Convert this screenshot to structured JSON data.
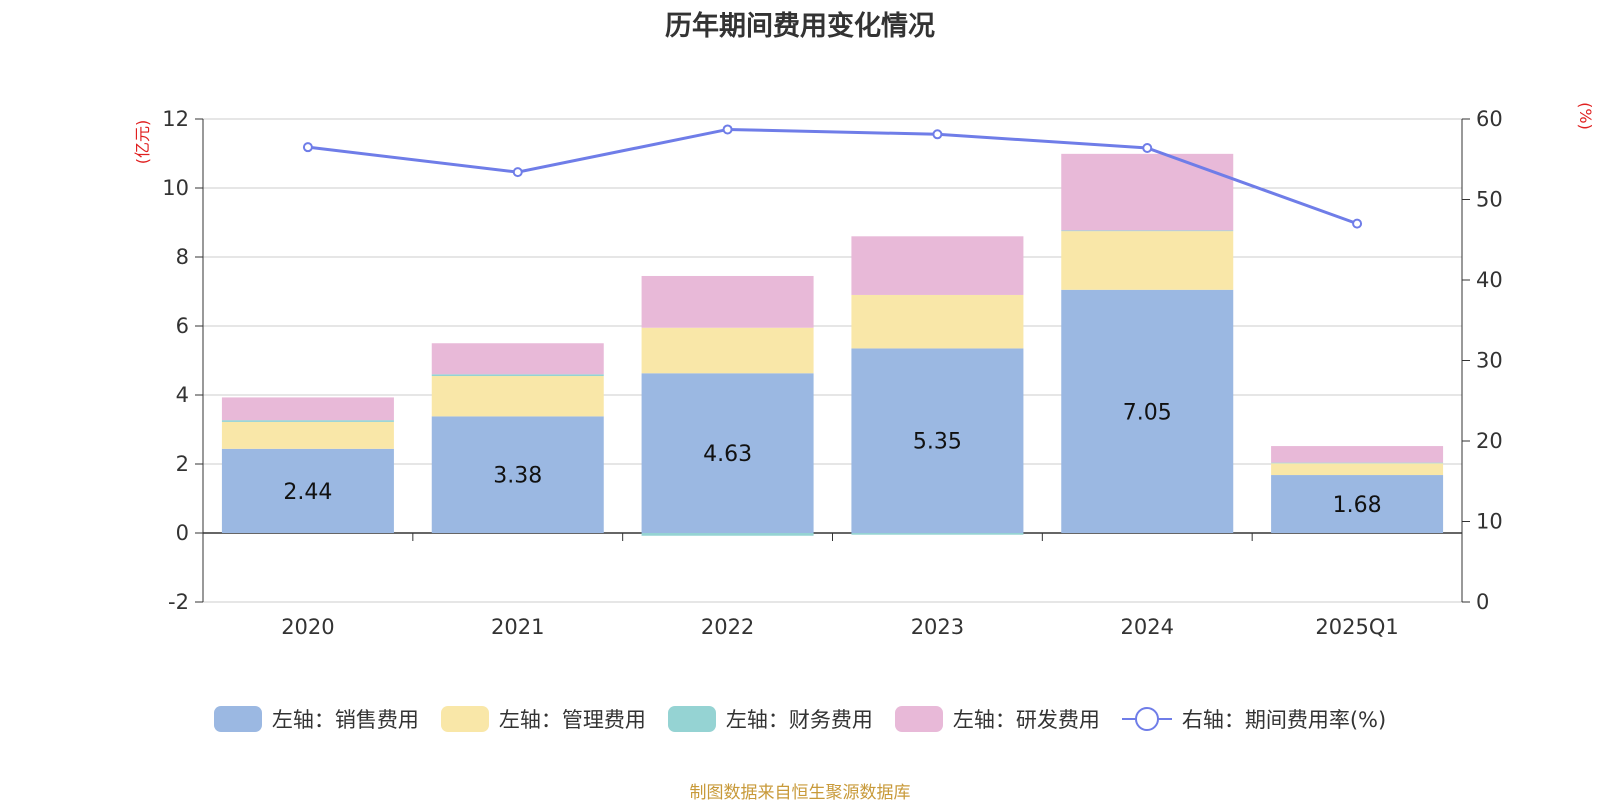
{
  "chart_data": {
    "type": "bar",
    "title": "历年期间费用变化情况",
    "categories": [
      "2020",
      "2021",
      "2022",
      "2023",
      "2024",
      "2025Q1"
    ],
    "series": [
      {
        "name": "左轴：销售费用",
        "axis": "left",
        "stack": "cost",
        "color": "#9bb8e2",
        "values": [
          2.44,
          3.38,
          4.63,
          5.35,
          7.05,
          1.68
        ]
      },
      {
        "name": "左轴：管理费用",
        "axis": "left",
        "stack": "cost",
        "color": "#f9e7a8",
        "values": [
          0.78,
          1.17,
          1.32,
          1.55,
          1.7,
          0.34
        ]
      },
      {
        "name": "左轴：财务费用",
        "axis": "left",
        "stack": "cost",
        "color": "#95d3d3",
        "values": [
          0.05,
          0.05,
          -0.08,
          -0.05,
          0.02,
          0.02
        ]
      },
      {
        "name": "左轴：研发费用",
        "axis": "left",
        "stack": "cost",
        "color": "#e8b9d8",
        "values": [
          0.66,
          0.9,
          1.5,
          1.7,
          2.22,
          0.48
        ]
      },
      {
        "name": "右轴：期间费用率(%)",
        "axis": "right",
        "type": "line",
        "color": "#6f7de8",
        "values": [
          56.5,
          53.4,
          58.7,
          58.1,
          56.4,
          47.0
        ]
      }
    ],
    "data_labels": [
      "2.44",
      "3.38",
      "4.63",
      "5.35",
      "7.05",
      "1.68"
    ],
    "y_left": {
      "label": "(亿元)",
      "ticks": [
        "12",
        "10",
        "8",
        "6",
        "4",
        "2",
        "0",
        "-2"
      ],
      "min": -2,
      "max": 12
    },
    "y_right": {
      "label": "(%)",
      "ticks": [
        "60",
        "50",
        "40",
        "30",
        "20",
        "10",
        "0"
      ],
      "min": 0,
      "max": 60
    },
    "grid": true,
    "legend_position": "bottom",
    "source": "制图数据来自恒生聚源数据库"
  }
}
